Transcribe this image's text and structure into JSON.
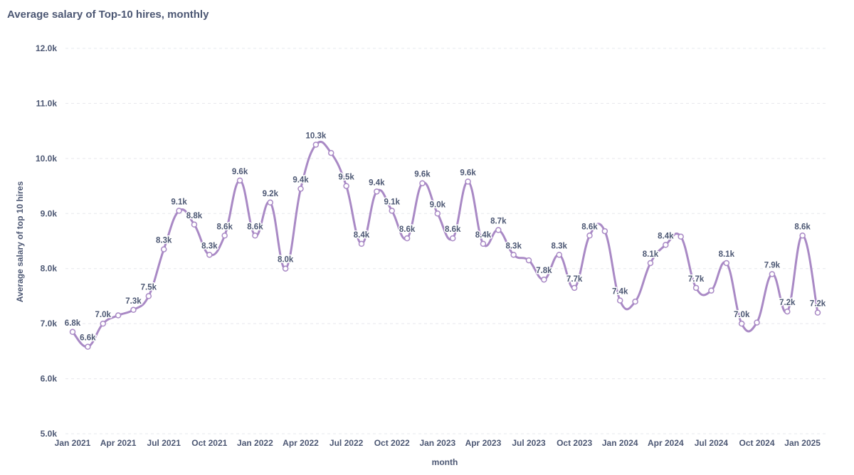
{
  "chart_data": {
    "type": "line",
    "title": "Average salary of Top-10 hires, monthly",
    "xlabel": "month",
    "ylabel": "Average salary of top 10 hires",
    "ylim": [
      5000,
      12000
    ],
    "y_ticks": [
      "5.0k",
      "6.0k",
      "7.0k",
      "8.0k",
      "9.0k",
      "10.0k",
      "11.0k",
      "12.0k"
    ],
    "x_ticks": [
      "Jan 2021",
      "Apr 2021",
      "Jul 2021",
      "Oct 2021",
      "Jan 2022",
      "Apr 2022",
      "Jul 2022",
      "Oct 2022",
      "Jan 2023",
      "Apr 2023",
      "Jul 2023",
      "Oct 2023",
      "Jan 2024",
      "Apr 2024",
      "Jul 2024",
      "Oct 2024",
      "Jan 2025"
    ],
    "grid": true,
    "color": "#a989c5",
    "x": [
      "Jan 2021",
      "Feb 2021",
      "Mar 2021",
      "Apr 2021",
      "May 2021",
      "Jun 2021",
      "Jul 2021",
      "Aug 2021",
      "Sep 2021",
      "Oct 2021",
      "Nov 2021",
      "Dec 2021",
      "Jan 2022",
      "Feb 2022",
      "Mar 2022",
      "Apr 2022",
      "May 2022",
      "Jun 2022",
      "Jul 2022",
      "Aug 2022",
      "Sep 2022",
      "Oct 2022",
      "Nov 2022",
      "Dec 2022",
      "Jan 2023",
      "Feb 2023",
      "Mar 2023",
      "Apr 2023",
      "May 2023",
      "Jun 2023",
      "Jul 2023",
      "Aug 2023",
      "Sep 2023",
      "Oct 2023",
      "Nov 2023",
      "Dec 2023",
      "Jan 2024",
      "Feb 2024",
      "Mar 2024",
      "Apr 2024",
      "May 2024",
      "Jun 2024",
      "Jul 2024",
      "Aug 2024",
      "Sep 2024",
      "Oct 2024",
      "Nov 2024",
      "Dec 2024",
      "Jan 2025",
      "Feb 2025"
    ],
    "values": [
      6850,
      6580,
      7000,
      7150,
      7250,
      7500,
      8350,
      9050,
      8800,
      8250,
      8600,
      9600,
      8600,
      9200,
      8000,
      9450,
      10250,
      10100,
      9500,
      8450,
      9400,
      9050,
      8550,
      9550,
      9000,
      8550,
      9580,
      8450,
      8700,
      8250,
      8150,
      7800,
      8250,
      7650,
      8600,
      8680,
      7420,
      7400,
      8100,
      8430,
      8580,
      7650,
      7600,
      8100,
      7000,
      7020,
      7900,
      7220,
      8600,
      7200
    ],
    "labels": [
      "6.8k",
      "6.6k",
      "7.0k",
      "",
      "7.3k",
      "7.5k",
      "8.3k",
      "9.1k",
      "8.8k",
      "8.3k",
      "8.6k",
      "9.6k",
      "8.6k",
      "9.2k",
      "8.0k",
      "9.4k",
      "10.3k",
      "",
      "9.5k",
      "8.4k",
      "9.4k",
      "9.1k",
      "8.6k",
      "9.6k",
      "9.0k",
      "8.6k",
      "9.6k",
      "8.4k",
      "8.7k",
      "8.3k",
      "",
      "7.8k",
      "8.3k",
      "7.7k",
      "8.6k",
      "",
      "7.4k",
      "",
      "8.1k",
      "8.4k",
      "",
      "7.7k",
      "",
      "8.1k",
      "7.0k",
      "",
      "7.9k",
      "7.2k",
      "8.6k",
      "7.2k"
    ]
  }
}
